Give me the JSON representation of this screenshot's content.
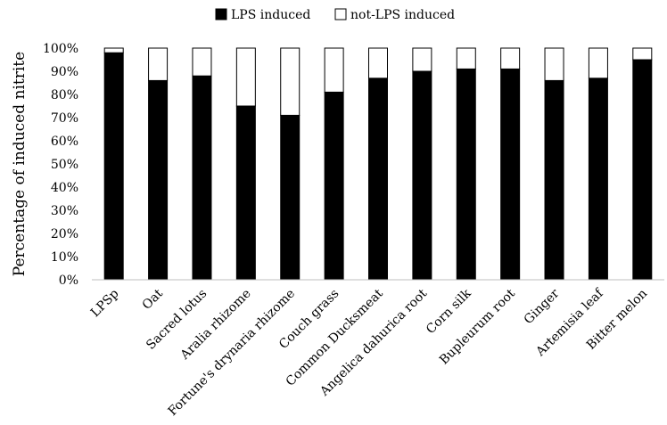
{
  "chart_data": {
    "type": "bar",
    "stacked": true,
    "title": "",
    "xlabel": "",
    "ylabel": "Percentage of induced nitrite",
    "ylim": [
      0,
      100
    ],
    "yticks": [
      "0%",
      "10%",
      "20%",
      "30%",
      "40%",
      "50%",
      "60%",
      "70%",
      "80%",
      "90%",
      "100%"
    ],
    "legend_position": "top-center",
    "categories": [
      "LPSp",
      "Oat",
      "Sacred lotus",
      "Aralia rhizome",
      "Fortune's drynaria rhizome",
      "Couch grass",
      "Common Ducksmeat",
      "Angelica dahurica root",
      "Corn silk",
      "Bupleurum root",
      "Ginger",
      "Artemisia leaf",
      "Bitter melon"
    ],
    "series": [
      {
        "name": "LPS induced",
        "color": "#000000",
        "values": [
          98,
          86,
          88,
          75,
          71,
          81,
          87,
          90,
          91,
          91,
          86,
          87,
          95
        ]
      },
      {
        "name": "not-LPS induced",
        "color": "#ffffff",
        "values": [
          2,
          14,
          12,
          25,
          29,
          19,
          13,
          10,
          9,
          9,
          14,
          13,
          5
        ]
      }
    ]
  }
}
